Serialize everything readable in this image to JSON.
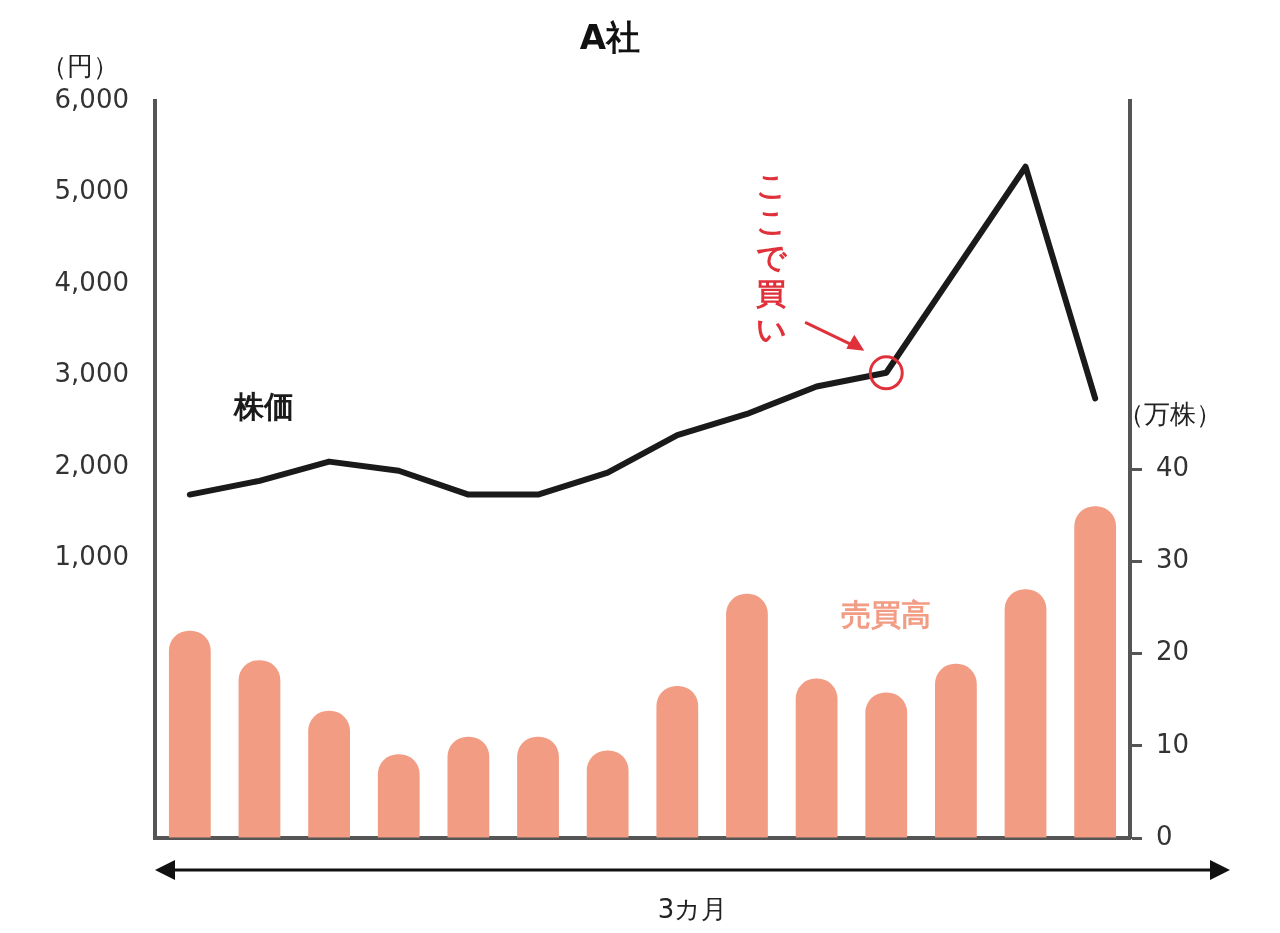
{
  "chart_data": {
    "type": "bar",
    "title": "A社",
    "ylabel": "（円）",
    "y2label": "（万株）",
    "xlabel": "3カ月",
    "categories": [
      null,
      null,
      null,
      null,
      null,
      null,
      null,
      null,
      null,
      null,
      null,
      null,
      null,
      null
    ],
    "series": [
      {
        "name": "株価",
        "type": "line",
        "color": "#1a1a1a",
        "values": [
          1700,
          1850,
          2060,
          1960,
          1700,
          1700,
          1940,
          2350,
          2580,
          2880,
          3030,
          null,
          5280,
          2750
        ]
      },
      {
        "name": "売買高",
        "axis": "y2",
        "color": "#f29c84",
        "values": [
          22.5,
          19.3,
          13.8,
          9.1,
          11,
          11,
          9.5,
          16.5,
          26.5,
          17.3,
          15.8,
          18.9,
          27,
          36
        ]
      }
    ],
    "ylim": [
      -2050,
      6000
    ],
    "yticks": [
      {
        "value": 1000,
        "label": "1,000"
      },
      {
        "value": 2000,
        "label": "2,000"
      },
      {
        "value": 3000,
        "label": "3,000"
      },
      {
        "value": 4000,
        "label": "4,000"
      },
      {
        "value": 5000,
        "label": "5,000"
      },
      {
        "value": 6000,
        "label": "6,000"
      }
    ],
    "y2lim": [
      0,
      80
    ],
    "y2ticks": [
      0,
      10,
      20,
      30,
      40
    ],
    "annotations": [
      "ここで買い"
    ],
    "grid": false,
    "legend": false,
    "tick_labels": "y",
    "marker": "none",
    "line_style": "solid"
  }
}
